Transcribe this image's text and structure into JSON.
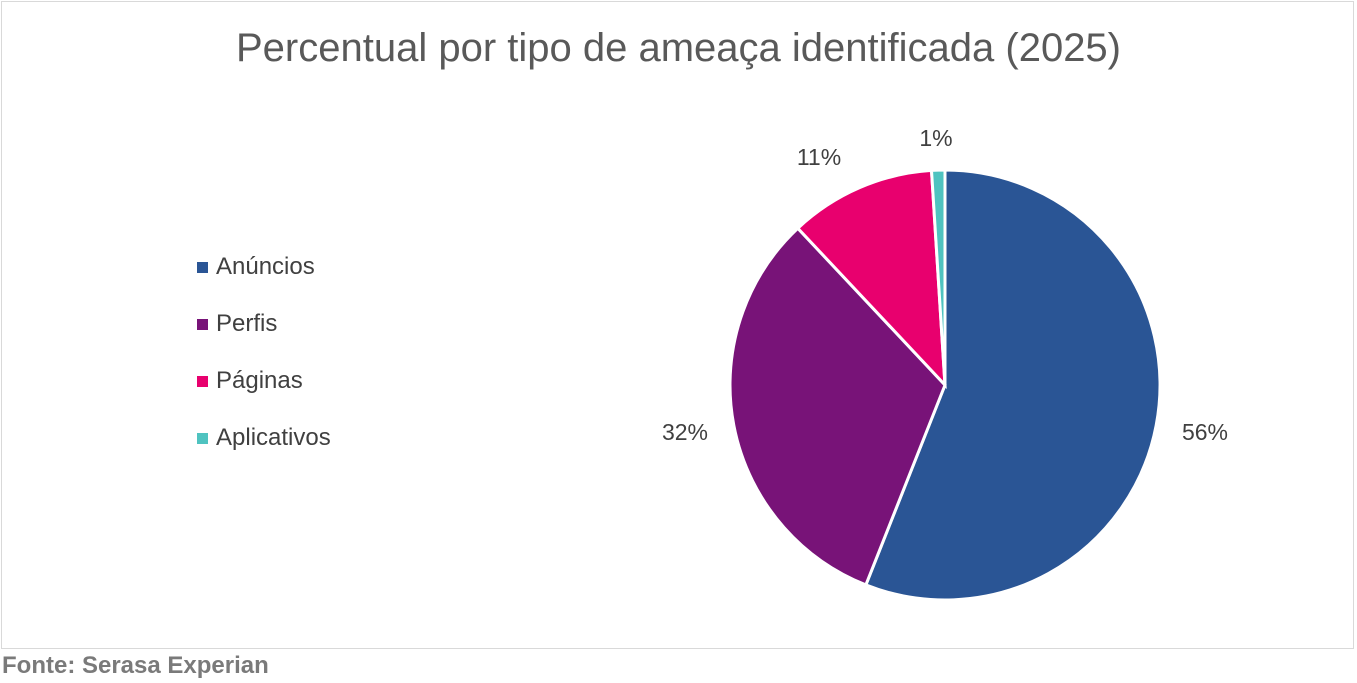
{
  "chart_data": {
    "type": "pie",
    "title": "Percentual por tipo de ameaça identificada (2025)",
    "categories": [
      "Anúncios",
      "Perfis",
      "Páginas",
      "Aplicativos"
    ],
    "values": [
      56,
      32,
      11,
      1
    ],
    "labels": [
      "56%",
      "32%",
      "11%",
      "1%"
    ],
    "colors": [
      "#2a5595",
      "#781378",
      "#e8006e",
      "#4fc3c0"
    ],
    "legend": "left",
    "start": "top",
    "direction": "clockwise"
  },
  "source": "Fonte: Serasa Experian"
}
